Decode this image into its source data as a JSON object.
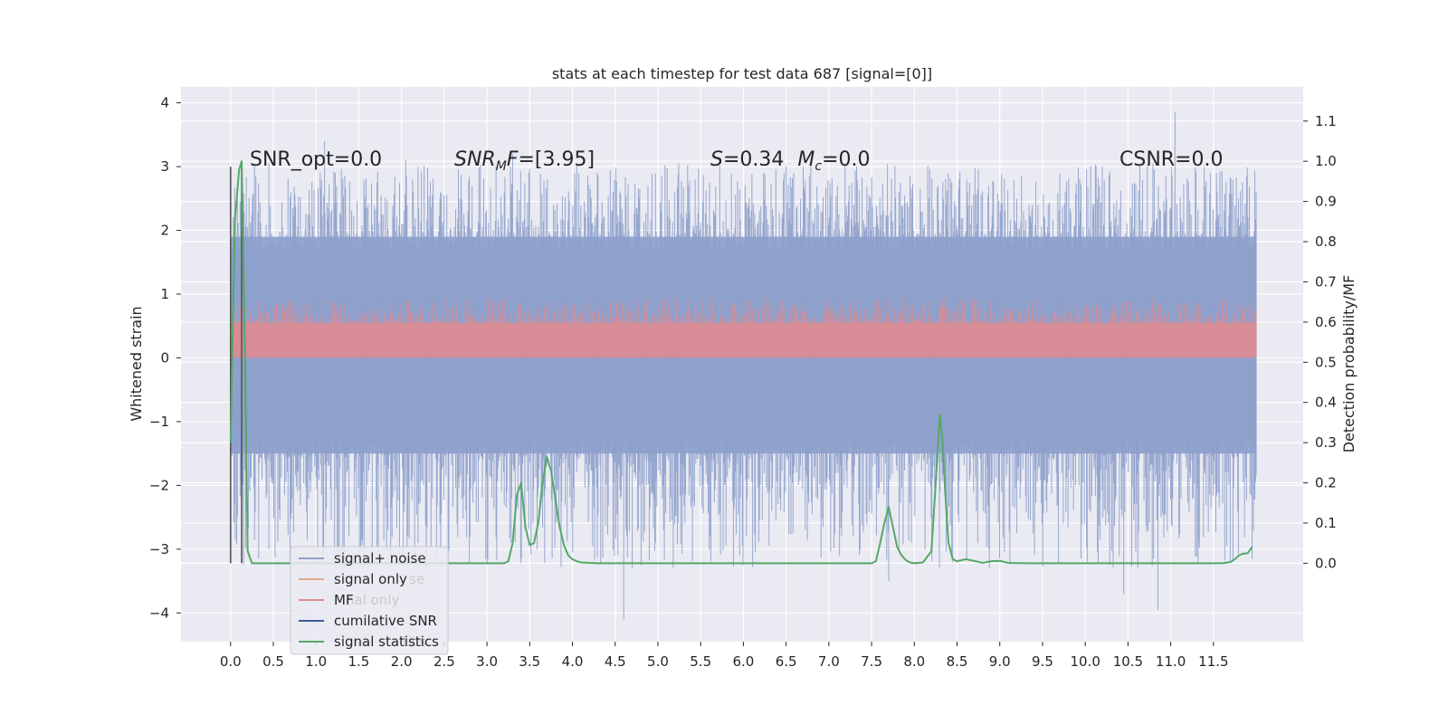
{
  "chart_data": {
    "type": "line",
    "title": "stats at each timestep for test data 687 [signal=[0]]",
    "ylabel": "Whitened strain",
    "y2label": "Detection probability/MF",
    "xlim": [
      -0.58,
      12.55
    ],
    "ylim": [
      -4.45,
      4.25
    ],
    "y2lim": [
      -0.195,
      1.185
    ],
    "x_ticks": [
      0.0,
      0.5,
      1.0,
      1.5,
      2.0,
      2.5,
      3.0,
      3.5,
      4.0,
      4.5,
      5.0,
      5.5,
      6.0,
      6.5,
      7.0,
      7.5,
      8.0,
      8.5,
      9.0,
      9.5,
      10.0,
      10.5,
      11.0,
      11.5
    ],
    "x_tick_labels": [
      "0.0",
      "0.5",
      "1.0",
      "1.5",
      "2.0",
      "2.5",
      "3.0",
      "3.5",
      "4.0",
      "4.5",
      "5.0",
      "5.5",
      "6.0",
      "6.5",
      "7.0",
      "7.5",
      "8.0",
      "8.5",
      "9.0",
      "9.5",
      "10.0",
      "10.5",
      "11.0",
      "11.5"
    ],
    "y_ticks": [
      -4,
      -3,
      -2,
      -1,
      0,
      1,
      2,
      3,
      4
    ],
    "y_tick_labels": [
      "−4",
      "−3",
      "−2",
      "−1",
      "0",
      "1",
      "2",
      "3",
      "4"
    ],
    "y2_ticks": [
      0.0,
      0.1,
      0.2,
      0.3,
      0.4,
      0.5,
      0.6,
      0.7,
      0.8,
      0.9,
      1.0,
      1.1
    ],
    "y2_tick_labels": [
      "0.0",
      "0.1",
      "0.2",
      "0.3",
      "0.4",
      "0.5",
      "0.6",
      "0.7",
      "0.8",
      "0.9",
      "1.0",
      "1.1"
    ],
    "grid": true,
    "legend_position": "lower-left",
    "legend_entries": [
      {
        "label": "signal+ noise",
        "color": "#8da0cb"
      },
      {
        "label": "signal only",
        "color": "#e0a98a"
      },
      {
        "label": "MF",
        "color": "#d98c94"
      },
      {
        "label": "cumilative SNR",
        "color": "#3a5aa0"
      },
      {
        "label": "signal statistics",
        "color": "#55a868"
      }
    ],
    "legend_ghost_entries": [
      "se",
      "nal only",
      "tics"
    ],
    "annotations": [
      {
        "text": "SNR_opt=0.0"
      },
      {
        "text": "SNR_MF=[3.95]"
      },
      {
        "text": "S=0.34   M_c=0.0"
      },
      {
        "text": "CSNR=0.0"
      }
    ],
    "series": [
      {
        "name": "signal+ noise",
        "kind": "noise_band",
        "axis": "left",
        "color": "#8da0cb",
        "x_range": [
          0.0,
          12.0
        ],
        "typical_range": [
          -1.5,
          1.9
        ],
        "max": 3.85,
        "min": -4.1,
        "spikes": [
          [
            1.1,
            3.4
          ],
          [
            4.6,
            -4.1
          ],
          [
            11.05,
            3.85
          ],
          [
            10.85,
            -3.95
          ],
          [
            10.45,
            -3.7
          ],
          [
            4.7,
            -3.3
          ],
          [
            7.7,
            -3.5
          ],
          [
            2.05,
            3.1
          ],
          [
            3.3,
            3.2
          ],
          [
            5.6,
            -3.0
          ],
          [
            6.7,
            3.0
          ]
        ]
      },
      {
        "name": "MF",
        "kind": "noise_band",
        "axis": "left",
        "color": "#d98c94",
        "x_range": [
          0.0,
          12.0
        ],
        "typical_range": [
          0.0,
          0.55
        ],
        "max": 1.0,
        "min": 0.0
      },
      {
        "name": "signal statistics",
        "kind": "line",
        "axis": "right",
        "color": "#55a868",
        "x": [
          0.0,
          0.05,
          0.1,
          0.13,
          0.17,
          0.2,
          0.25,
          0.3,
          0.5,
          1.0,
          2.0,
          3.0,
          3.2,
          3.25,
          3.3,
          3.35,
          3.4,
          3.45,
          3.5,
          3.55,
          3.6,
          3.65,
          3.7,
          3.75,
          3.8,
          3.85,
          3.9,
          3.95,
          4.0,
          4.05,
          4.1,
          4.3,
          5.0,
          6.0,
          7.0,
          7.5,
          7.55,
          7.6,
          7.65,
          7.7,
          7.75,
          7.8,
          7.85,
          7.9,
          7.95,
          8.0,
          8.1,
          8.2,
          8.25,
          8.3,
          8.33,
          8.36,
          8.4,
          8.45,
          8.5,
          8.6,
          8.7,
          8.8,
          8.9,
          9.0,
          9.1,
          9.3,
          9.5,
          10.0,
          11.0,
          11.6,
          11.7,
          11.75,
          11.8,
          11.85,
          11.9,
          11.95
        ],
        "y": [
          0.3,
          0.85,
          0.98,
          1.0,
          0.5,
          0.03,
          0.0,
          0.0,
          0.0,
          0.0,
          0.0,
          0.0,
          0.0,
          0.005,
          0.05,
          0.17,
          0.2,
          0.09,
          0.045,
          0.05,
          0.1,
          0.2,
          0.265,
          0.23,
          0.16,
          0.09,
          0.045,
          0.02,
          0.01,
          0.005,
          0.002,
          0.0,
          0.0,
          0.0,
          0.0,
          0.0,
          0.005,
          0.05,
          0.1,
          0.14,
          0.09,
          0.04,
          0.02,
          0.008,
          0.002,
          0.0,
          0.002,
          0.03,
          0.2,
          0.37,
          0.3,
          0.18,
          0.05,
          0.01,
          0.005,
          0.01,
          0.006,
          0.001,
          0.005,
          0.006,
          0.001,
          0.0,
          0.0,
          0.0,
          0.0,
          0.0,
          0.003,
          0.01,
          0.02,
          0.024,
          0.025,
          0.04
        ]
      }
    ],
    "vertical_lines": [
      {
        "x": 0.0,
        "color": "#555555"
      },
      {
        "x": 0.13,
        "color": "#555555"
      }
    ]
  }
}
